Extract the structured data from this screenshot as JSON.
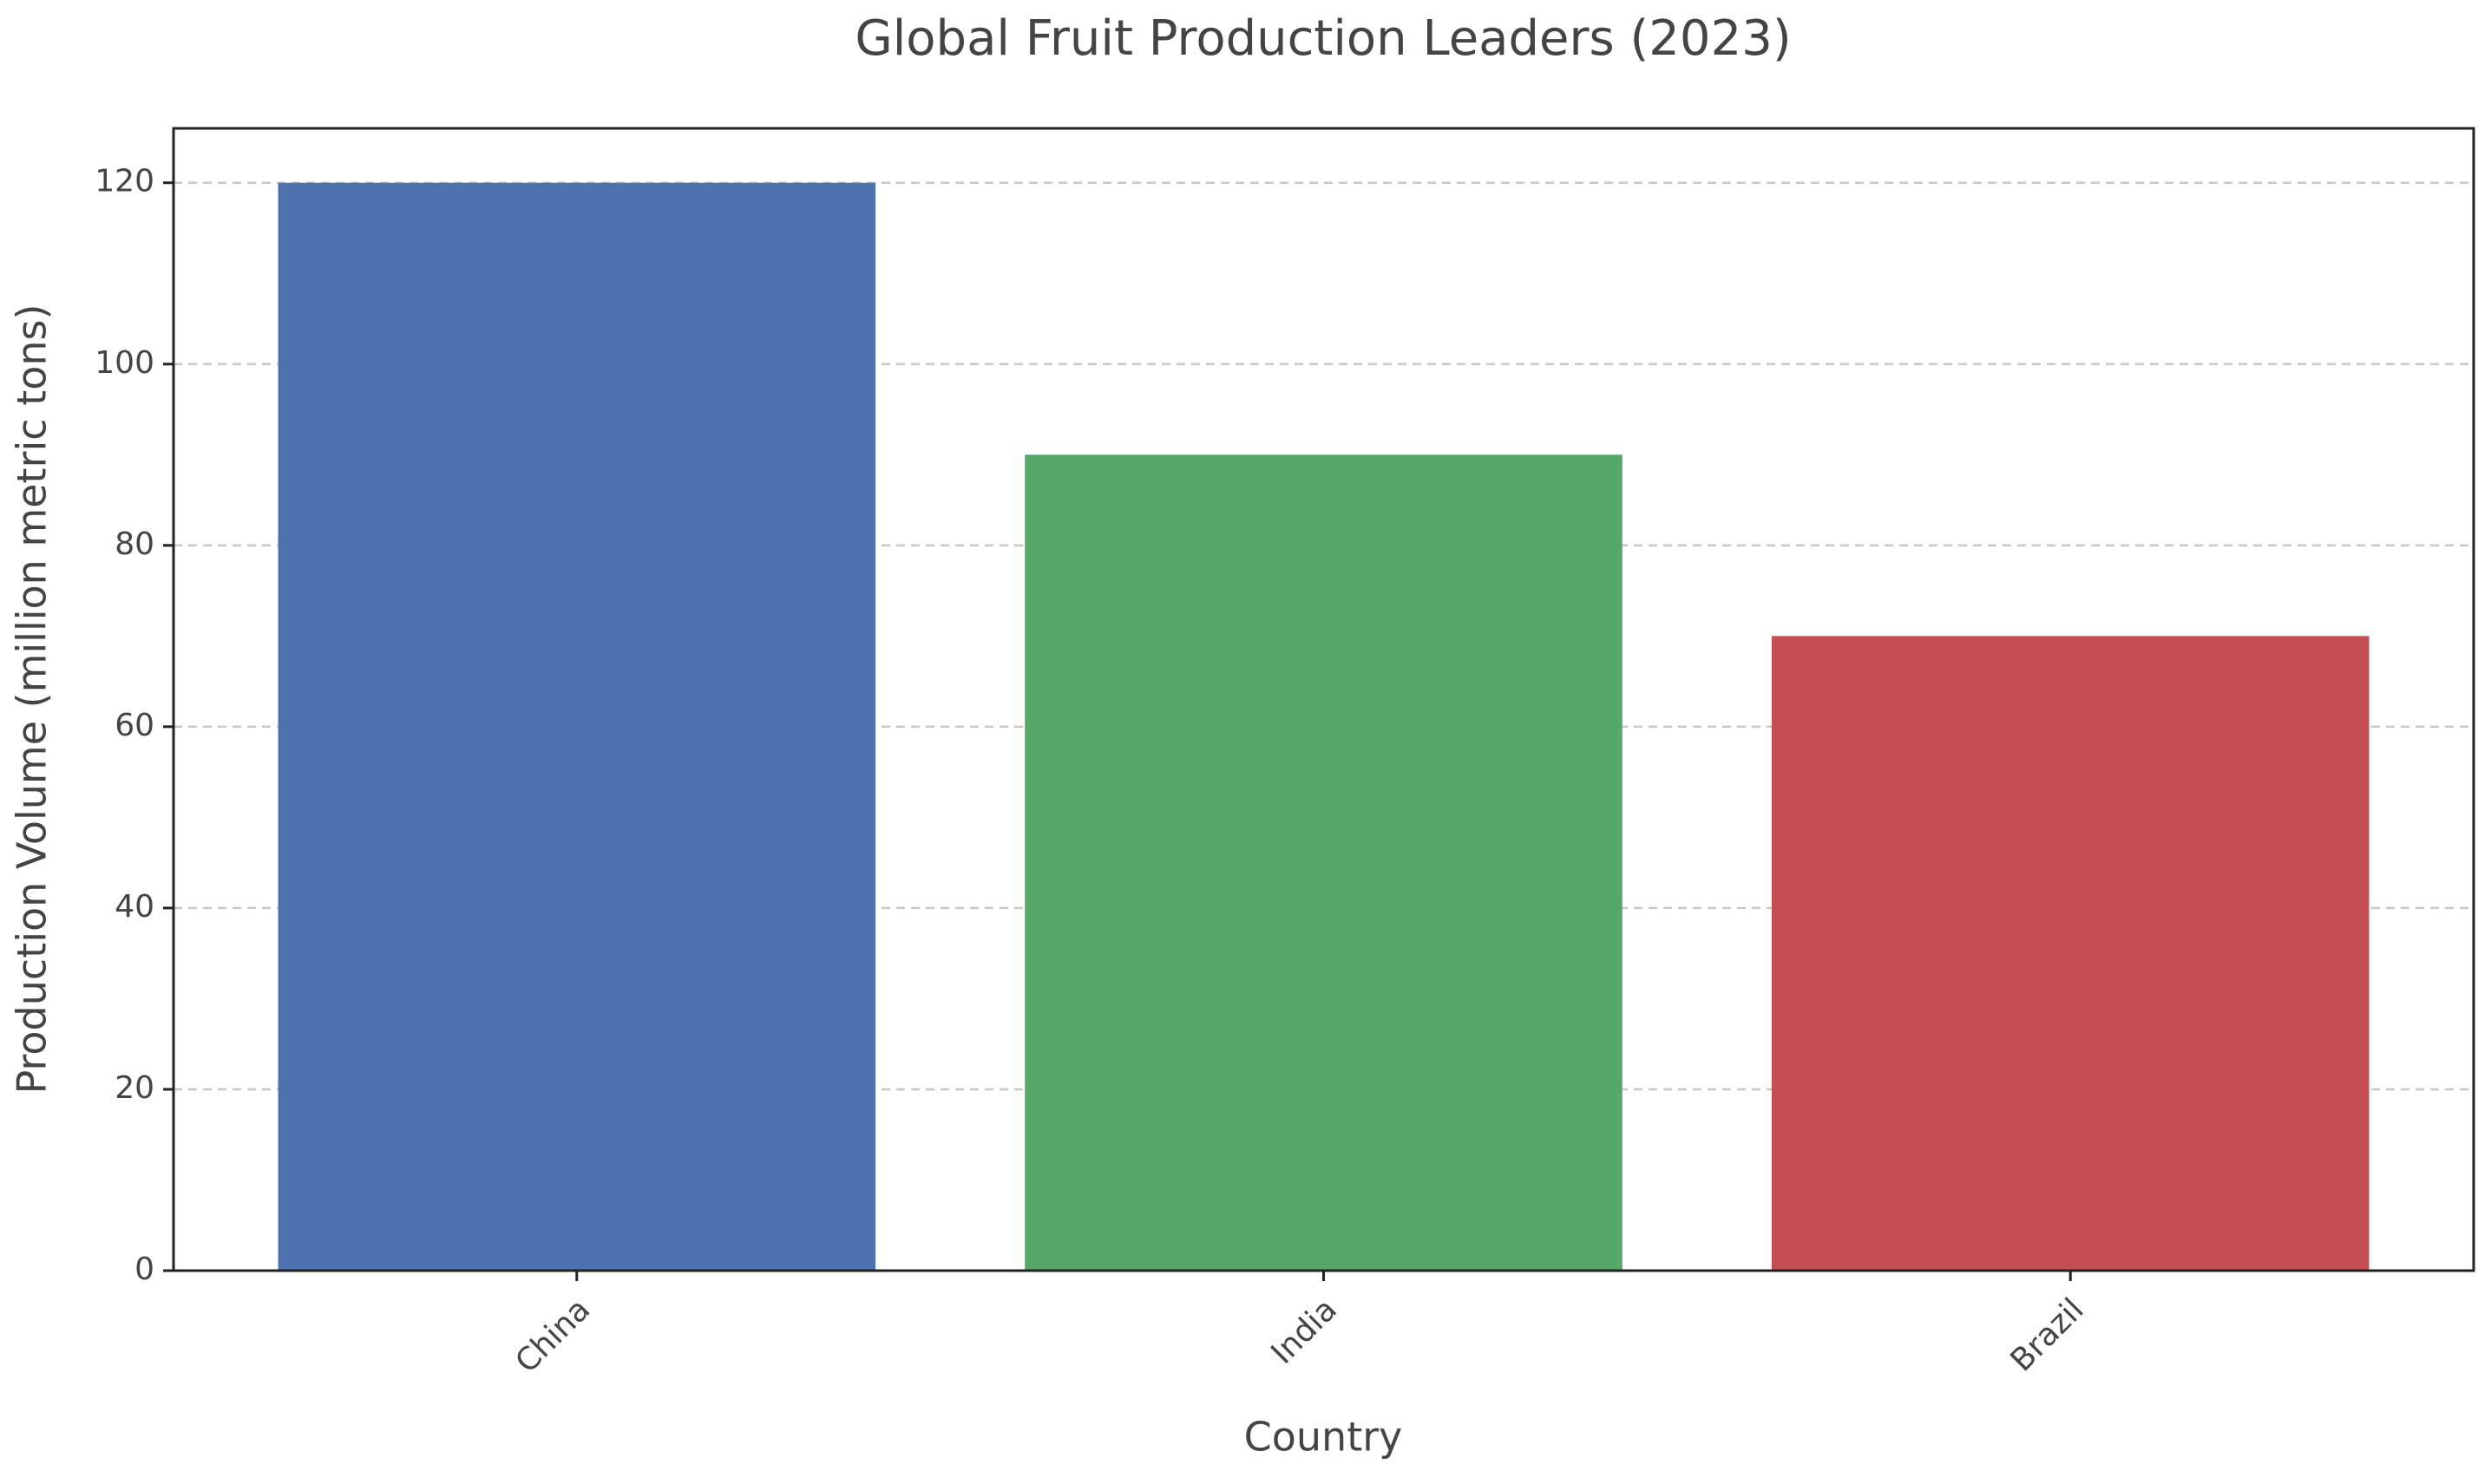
{
  "chart_data": {
    "type": "bar",
    "title": "Global Fruit Production Leaders (2023)",
    "x_label": "Country",
    "y_label": "Production Volume (million metric tons)",
    "categories": [
      "China",
      "India",
      "Brazil"
    ],
    "values": [
      120,
      90,
      70
    ],
    "colors": [
      "#4c72b0",
      "#55a868",
      "#c44e52"
    ],
    "ylim": [
      0,
      126
    ],
    "yticks": [
      0,
      20,
      40,
      60,
      80,
      100,
      120
    ],
    "grid": true
  }
}
